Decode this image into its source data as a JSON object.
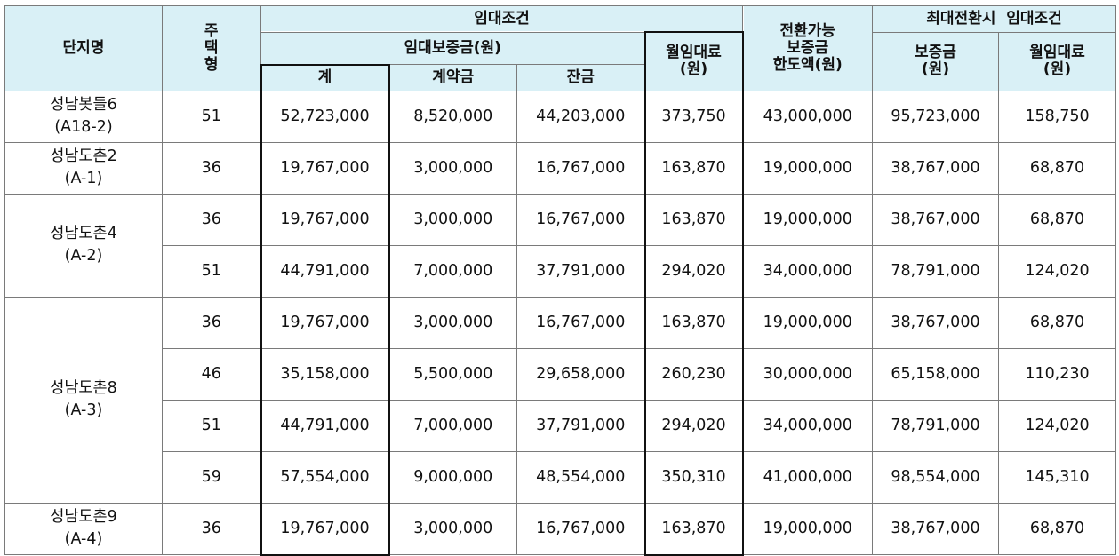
{
  "header": {
    "complex": "단지명",
    "house_type": [
      "주",
      "택",
      "형"
    ],
    "rent_conditions": "임대조건",
    "deposit": "임대보증금(원)",
    "monthly_rent": [
      "월임대료",
      "(원)"
    ],
    "convertible": [
      "전환가능",
      "보증금",
      "한도액(원)"
    ],
    "max_conversion": "최대전환시  임대조건",
    "total": "계",
    "contract": "계약금",
    "balance": "잔금",
    "max_deposit": [
      "보증금",
      "(원)"
    ],
    "max_monthly": [
      "월임대료",
      "(원)"
    ]
  },
  "groups": [
    {
      "name": [
        "성남봇들6",
        "(A18-2)"
      ],
      "rows": [
        {
          "type": "51",
          "total": "52,723,000",
          "contract": "8,520,000",
          "balance": "44,203,000",
          "monthly": "373,750",
          "limit": "43,000,000",
          "max_deposit": "95,723,000",
          "max_monthly": "158,750"
        }
      ]
    },
    {
      "name": [
        "성남도촌2",
        "(A-1)"
      ],
      "rows": [
        {
          "type": "36",
          "total": "19,767,000",
          "contract": "3,000,000",
          "balance": "16,767,000",
          "monthly": "163,870",
          "limit": "19,000,000",
          "max_deposit": "38,767,000",
          "max_monthly": "68,870"
        }
      ]
    },
    {
      "name": [
        "성남도촌4",
        "(A-2)"
      ],
      "rows": [
        {
          "type": "36",
          "total": "19,767,000",
          "contract": "3,000,000",
          "balance": "16,767,000",
          "monthly": "163,870",
          "limit": "19,000,000",
          "max_deposit": "38,767,000",
          "max_monthly": "68,870"
        },
        {
          "type": "51",
          "total": "44,791,000",
          "contract": "7,000,000",
          "balance": "37,791,000",
          "monthly": "294,020",
          "limit": "34,000,000",
          "max_deposit": "78,791,000",
          "max_monthly": "124,020"
        }
      ]
    },
    {
      "name": [
        "성남도촌8",
        "(A-3)"
      ],
      "rows": [
        {
          "type": "36",
          "total": "19,767,000",
          "contract": "3,000,000",
          "balance": "16,767,000",
          "monthly": "163,870",
          "limit": "19,000,000",
          "max_deposit": "38,767,000",
          "max_monthly": "68,870"
        },
        {
          "type": "46",
          "total": "35,158,000",
          "contract": "5,500,000",
          "balance": "29,658,000",
          "monthly": "260,230",
          "limit": "30,000,000",
          "max_deposit": "65,158,000",
          "max_monthly": "110,230"
        },
        {
          "type": "51",
          "total": "44,791,000",
          "contract": "7,000,000",
          "balance": "37,791,000",
          "monthly": "294,020",
          "limit": "34,000,000",
          "max_deposit": "78,791,000",
          "max_monthly": "124,020"
        },
        {
          "type": "59",
          "total": "57,554,000",
          "contract": "9,000,000",
          "balance": "48,554,000",
          "monthly": "350,310",
          "limit": "41,000,000",
          "max_deposit": "98,554,000",
          "max_monthly": "145,310"
        }
      ]
    },
    {
      "name": [
        "성남도촌9",
        "(A-4)"
      ],
      "rows": [
        {
          "type": "36",
          "total": "19,767,000",
          "contract": "3,000,000",
          "balance": "16,767,000",
          "monthly": "163,870",
          "limit": "19,000,000",
          "max_deposit": "38,767,000",
          "max_monthly": "68,870"
        }
      ]
    }
  ],
  "colors": {
    "header_bg": "#d9f0f6",
    "grid": "#7a7a7a",
    "emphasis_border": "#111111"
  }
}
